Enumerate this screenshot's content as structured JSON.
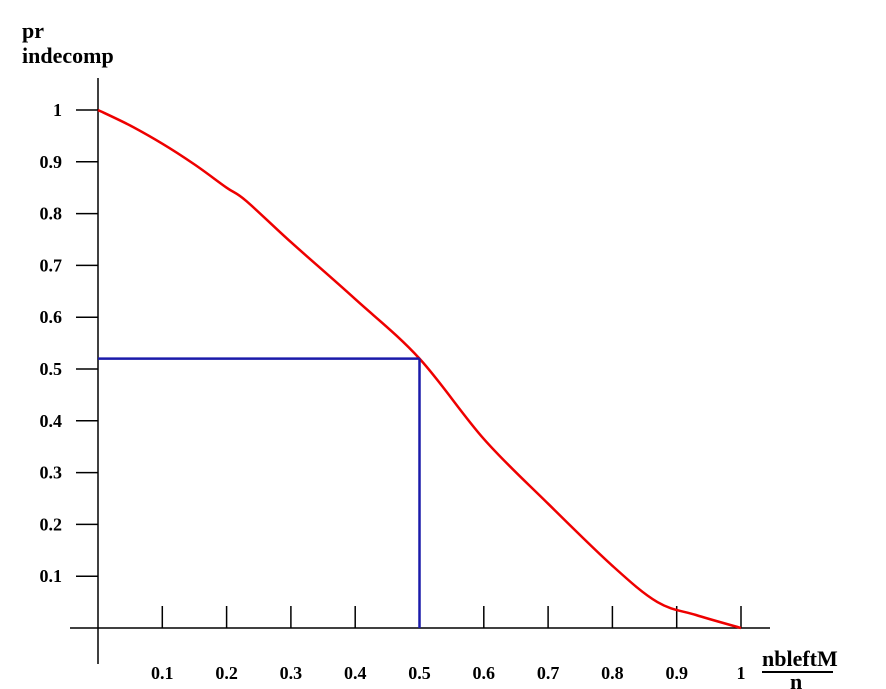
{
  "chart_data": {
    "type": "line",
    "ylabel_lines": [
      "pr",
      "indecomp"
    ],
    "xlabel_numerator": "nbleftM",
    "xlabel_denominator": "n",
    "xlim": [
      0,
      1
    ],
    "ylim": [
      0,
      1
    ],
    "x_ticks": [
      "0.1",
      "0.2",
      "0.3",
      "0.4",
      "0.5",
      "0.6",
      "0.7",
      "0.8",
      "0.9",
      "1"
    ],
    "x_tick_values": [
      0.1,
      0.2,
      0.3,
      0.4,
      0.5,
      0.6,
      0.7,
      0.8,
      0.9,
      1
    ],
    "y_ticks": [
      "0.1",
      "0.2",
      "0.3",
      "0.4",
      "0.5",
      "0.6",
      "0.7",
      "0.8",
      "0.9",
      "1"
    ],
    "y_tick_values": [
      0.1,
      0.2,
      0.3,
      0.4,
      0.5,
      0.6,
      0.7,
      0.8,
      0.9,
      1
    ],
    "grid": false,
    "series": [
      {
        "color": "#ee0000",
        "x": [
          0,
          0.05,
          0.1,
          0.15,
          0.2,
          0.23,
          0.3,
          0.4,
          0.5,
          0.6,
          0.7,
          0.8,
          0.87,
          0.93,
          1
        ],
        "y": [
          1,
          0.97,
          0.935,
          0.895,
          0.85,
          0.825,
          0.745,
          0.635,
          0.52,
          0.365,
          0.24,
          0.12,
          0.05,
          0.025,
          0
        ]
      }
    ],
    "reference_point": {
      "x": 0.5,
      "y": 0.52,
      "color": "#1a1aaa"
    }
  }
}
